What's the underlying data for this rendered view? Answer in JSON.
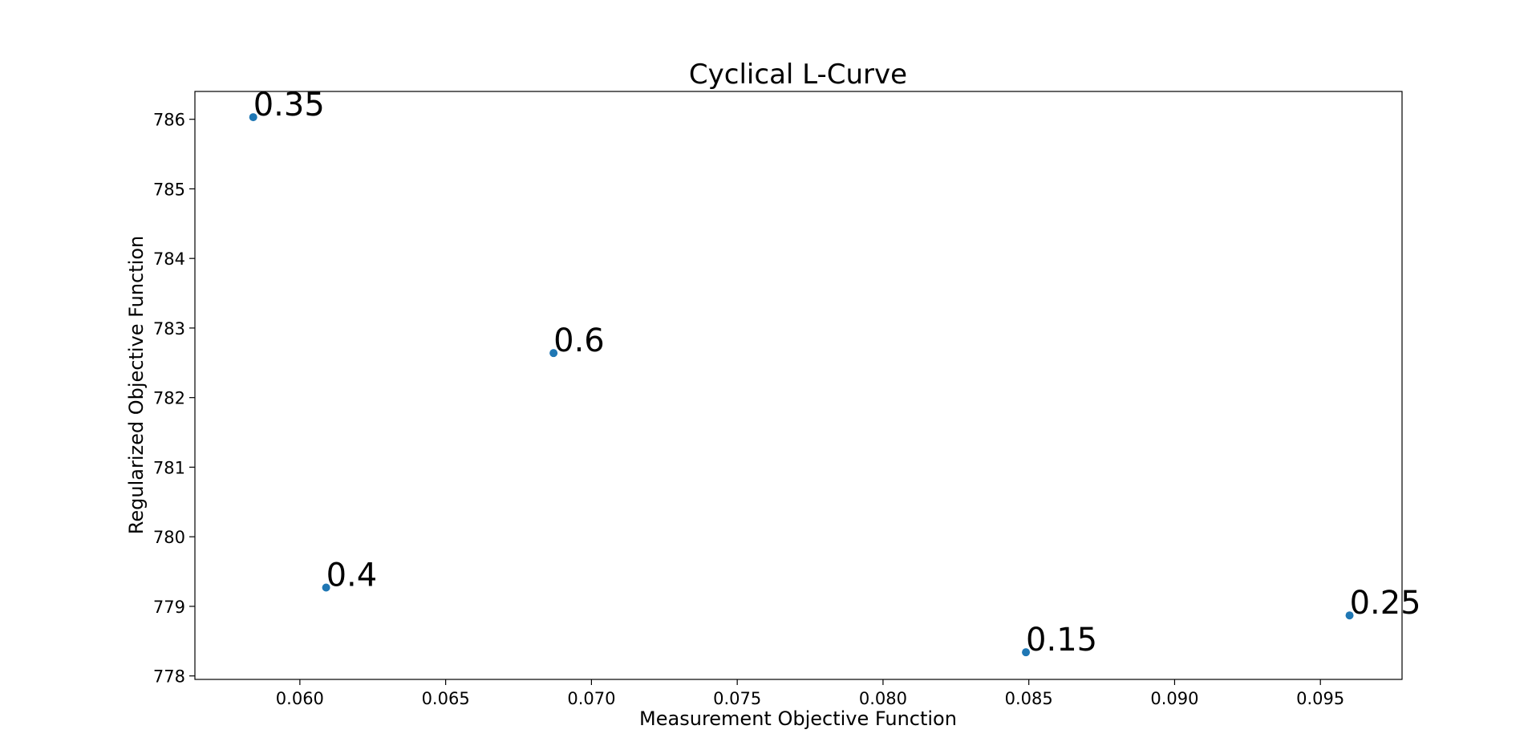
{
  "chart_data": {
    "type": "scatter",
    "title": "Cyclical L-Curve",
    "xlabel": "Measurement Objective Function",
    "ylabel": "Regularized Objective Function",
    "xlim": [
      0.0564,
      0.0978
    ],
    "ylim": [
      777.95,
      786.4
    ],
    "xticks": [
      0.06,
      0.065,
      0.07,
      0.075,
      0.08,
      0.085,
      0.09,
      0.095
    ],
    "xtick_labels": [
      "0.060",
      "0.065",
      "0.070",
      "0.075",
      "0.080",
      "0.085",
      "0.090",
      "0.095"
    ],
    "yticks": [
      778,
      779,
      780,
      781,
      782,
      783,
      784,
      785,
      786
    ],
    "ytick_labels": [
      "778",
      "779",
      "780",
      "781",
      "782",
      "783",
      "784",
      "785",
      "786"
    ],
    "grid": false,
    "legend": false,
    "marker_color": "#1f77b4",
    "points": [
      {
        "x": 0.0584,
        "y": 786.03,
        "label": "0.35"
      },
      {
        "x": 0.0687,
        "y": 782.64,
        "label": "0.6"
      },
      {
        "x": 0.0609,
        "y": 779.27,
        "label": "0.4"
      },
      {
        "x": 0.0849,
        "y": 778.34,
        "label": "0.15"
      },
      {
        "x": 0.096,
        "y": 778.87,
        "label": "0.25"
      }
    ]
  }
}
